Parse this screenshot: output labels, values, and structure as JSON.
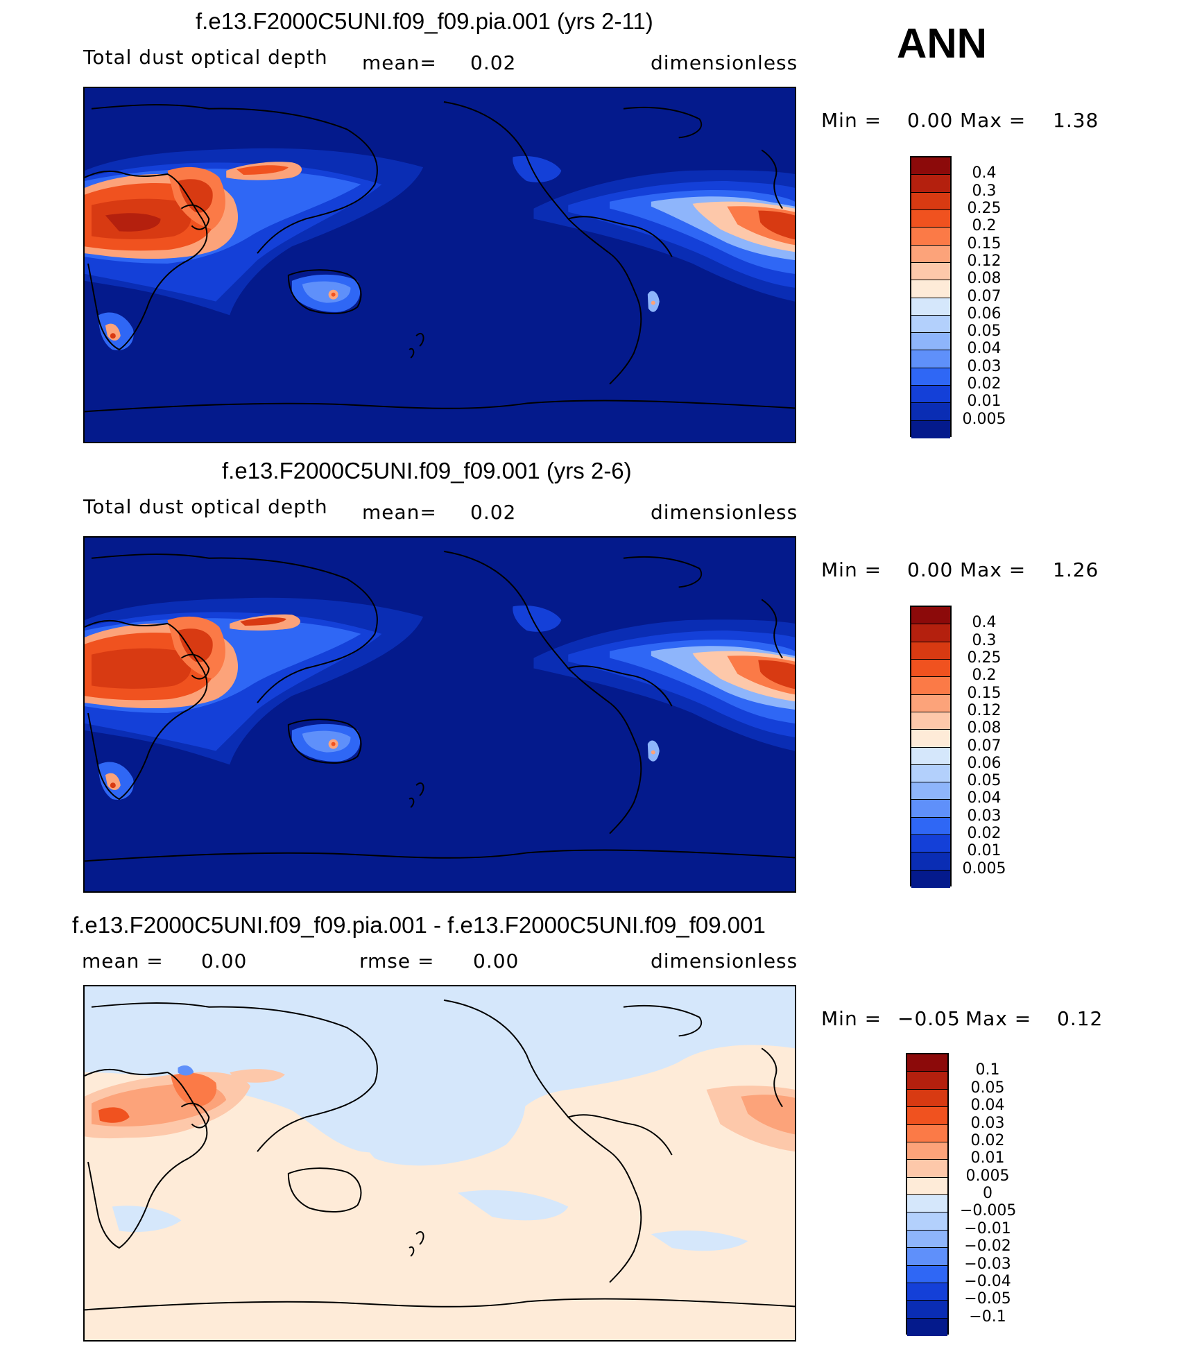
{
  "season": "ANN",
  "panels": [
    {
      "title": "f.e13.F2000C5UNI.f09_f09.pia.001 (yrs 2-11)",
      "variable": "Total dust optical depth",
      "mean_label": "mean=",
      "mean": "0.02",
      "units": "dimensionless",
      "min_label": "Min =",
      "min": "0.00",
      "max_label": "Max =",
      "max": "1.38",
      "levels": [
        "0.4",
        "0.3",
        "0.25",
        "0.2",
        "0.15",
        "0.12",
        "0.08",
        "0.07",
        "0.06",
        "0.05",
        "0.04",
        "0.03",
        "0.02",
        "0.01",
        "0.005"
      ],
      "colors": [
        "#8c0a0a",
        "#b4200e",
        "#d83a12",
        "#f0521f",
        "#fb7a47",
        "#fca37a",
        "#fdc8aa",
        "#feebd8",
        "#d5e7fb",
        "#b3d0fc",
        "#8eb5fb",
        "#5f90fa",
        "#2f67f5",
        "#1440d8",
        "#0a2db4",
        "#041a8c"
      ]
    },
    {
      "title": "f.e13.F2000C5UNI.f09_f09.001 (yrs 2-6)",
      "variable": "Total dust optical depth",
      "mean_label": "mean=",
      "mean": "0.02",
      "units": "dimensionless",
      "min_label": "Min =",
      "min": "0.00",
      "max_label": "Max =",
      "max": "1.26",
      "levels": [
        "0.4",
        "0.3",
        "0.25",
        "0.2",
        "0.15",
        "0.12",
        "0.08",
        "0.07",
        "0.06",
        "0.05",
        "0.04",
        "0.03",
        "0.02",
        "0.01",
        "0.005"
      ],
      "colors": [
        "#8c0a0a",
        "#b4200e",
        "#d83a12",
        "#f0521f",
        "#fb7a47",
        "#fca37a",
        "#fdc8aa",
        "#feebd8",
        "#d5e7fb",
        "#b3d0fc",
        "#8eb5fb",
        "#5f90fa",
        "#2f67f5",
        "#1440d8",
        "#0a2db4",
        "#041a8c"
      ]
    },
    {
      "title": "f.e13.F2000C5UNI.f09_f09.pia.001 - f.e13.F2000C5UNI.f09_f09.001",
      "mean_label": "mean =",
      "mean": "0.00",
      "rmse_label": "rmse =",
      "rmse": "0.00",
      "units": "dimensionless",
      "min_label": "Min =",
      "min": "−0.05",
      "max_label": "Max =",
      "max": "0.12",
      "levels": [
        "0.1",
        "0.05",
        "0.04",
        "0.03",
        "0.02",
        "0.01",
        "0.005",
        "0",
        "−0.005",
        "−0.01",
        "−0.02",
        "−0.03",
        "−0.04",
        "−0.05",
        "−0.1"
      ],
      "colors": [
        "#8c0a0a",
        "#b4200e",
        "#d83a12",
        "#f0521f",
        "#fb7a47",
        "#fca37a",
        "#fdc8aa",
        "#feebd8",
        "#d5e7fb",
        "#b3d0fc",
        "#8eb5fb",
        "#5f90fa",
        "#2f67f5",
        "#1440d8",
        "#0a2db4",
        "#041a8c"
      ]
    }
  ]
}
